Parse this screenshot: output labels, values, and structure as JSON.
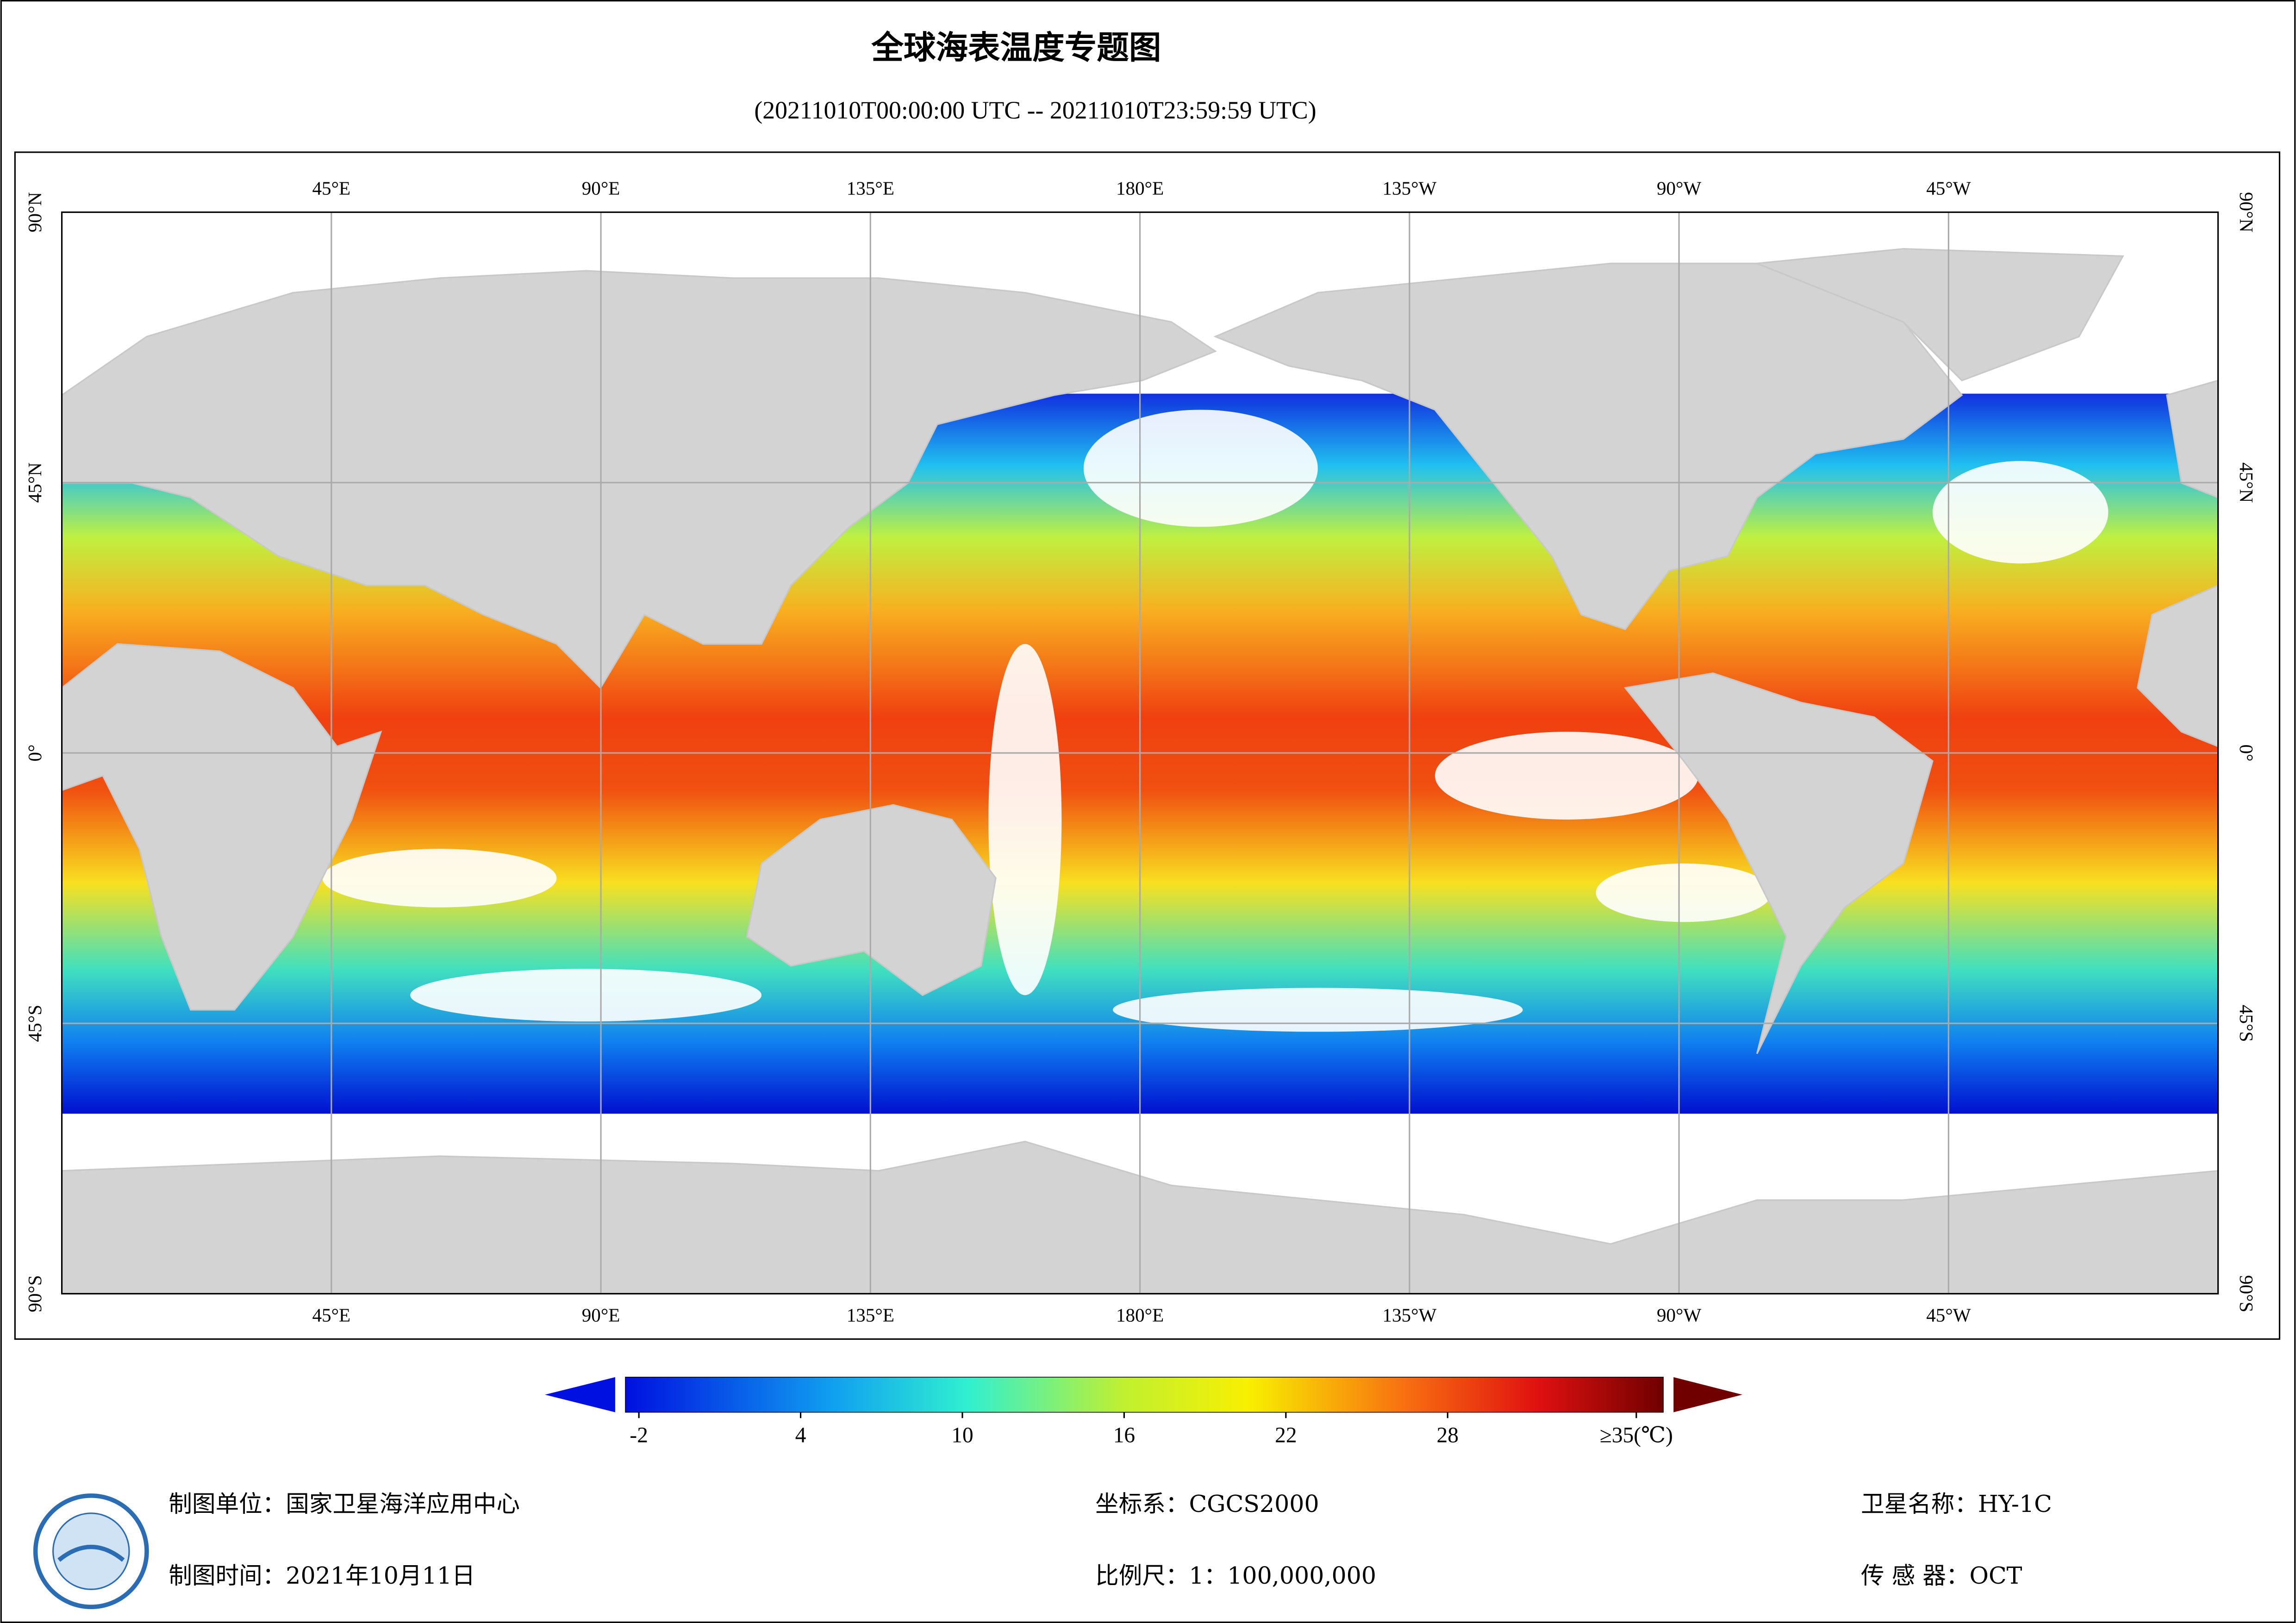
{
  "title": "全球海表温度专题图",
  "subtitle": "(20211010T00:00:00 UTC -- 20211010T23:59:59 UTC)",
  "map": {
    "lonlim": [
      0,
      360
    ],
    "latlim": [
      -90,
      90
    ],
    "lon_ticks": [
      {
        "value": 45,
        "label": "45°E"
      },
      {
        "value": 90,
        "label": "90°E"
      },
      {
        "value": 135,
        "label": "135°E"
      },
      {
        "value": 180,
        "label": "180°E"
      },
      {
        "value": 225,
        "label": "135°W"
      },
      {
        "value": 270,
        "label": "90°W"
      },
      {
        "value": 315,
        "label": "45°W"
      }
    ],
    "lat_ticks": [
      {
        "value": 90,
        "label": "90°N"
      },
      {
        "value": 45,
        "label": "45°N"
      },
      {
        "value": 0,
        "label": "0°"
      },
      {
        "value": -45,
        "label": "45°S"
      },
      {
        "value": -90,
        "label": "90°S"
      }
    ]
  },
  "colorbar": {
    "lim": [
      -2.5,
      36
    ],
    "ticks": [
      -2,
      4,
      10,
      16,
      22,
      28,
      {
        "value": 35,
        "label": "≥35(℃)"
      }
    ]
  },
  "footer": {
    "unit": "制图单位：国家卫星海洋应用中心",
    "time": "制图时间：2021年10月11日",
    "crs": "坐标系：CGCS2000",
    "scale": "比例尺：1：100,000,000",
    "satellite": "卫星名称：HY-1C",
    "sensor": "传 感 器：OCT"
  }
}
